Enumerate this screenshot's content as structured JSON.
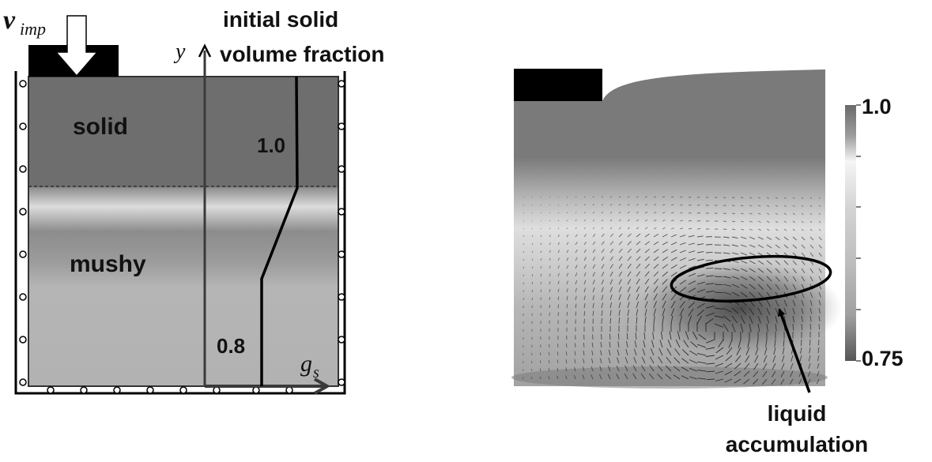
{
  "left_panel": {
    "velocity_symbol": "v",
    "velocity_subscript": "imp",
    "axis_y_label": "y",
    "axis_x_label": "g",
    "axis_x_subscript": "s",
    "title_line1": "initial solid",
    "title_line2": "volume fraction",
    "region_top_label": "solid",
    "region_bottom_label": "mushy",
    "profile_top_value": "1.0",
    "profile_bottom_value": "0.8"
  },
  "right_panel": {
    "colorbar_max_label": "1.0",
    "colorbar_min_label": "0.75",
    "annotation_line1": "liquid",
    "annotation_line2": "accumulation"
  },
  "colors": {
    "solid_region": "#6e6e6e",
    "mushy_region": "#b2b2b2",
    "outline": "#000000",
    "axis": "#3a3a3a"
  }
}
